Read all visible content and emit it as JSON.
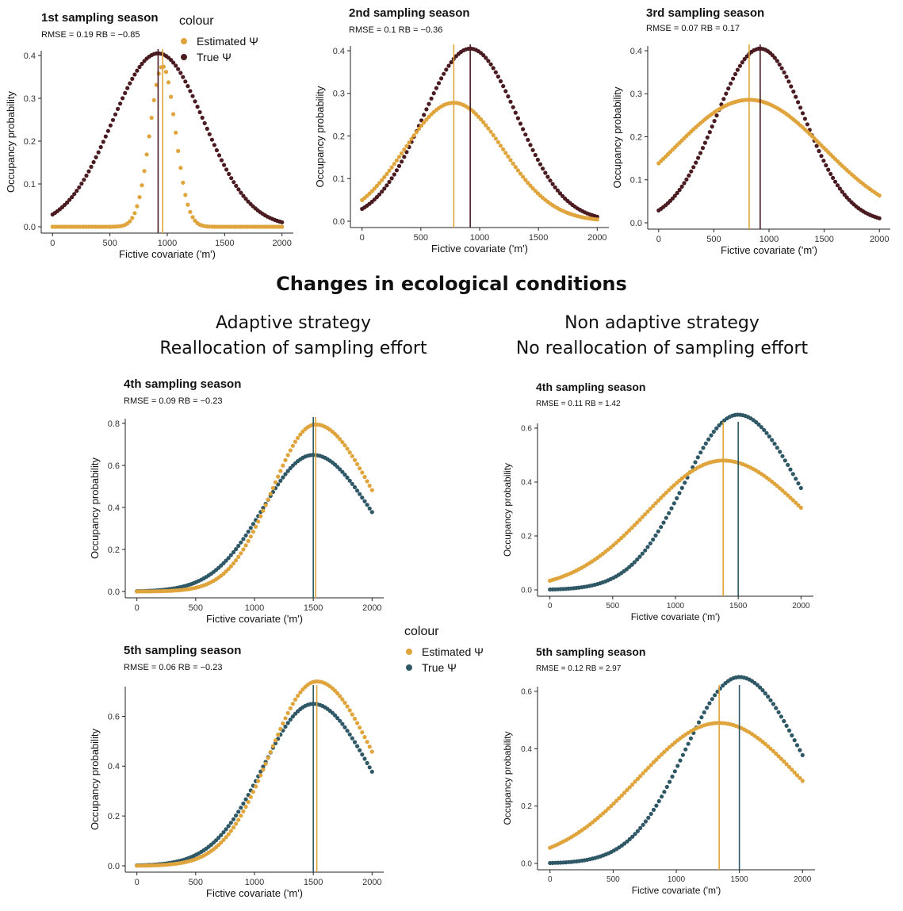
{
  "heading": "Changes in ecological conditions",
  "strategies": {
    "adaptive": {
      "line1": "Adaptive strategy",
      "line2": "Reallocation of sampling effort"
    },
    "nonadaptive": {
      "line1": "Non adaptive strategy",
      "line2": "No reallocation of sampling effort"
    }
  },
  "legends": [
    {
      "title": "colour",
      "items": [
        {
          "label": "Estimated Ψ",
          "color": "#e0a43c"
        },
        {
          "label": "True Ψ",
          "color": "#4a1c22"
        }
      ]
    },
    {
      "title": "colour",
      "items": [
        {
          "label": "Estimated Ψ",
          "color": "#e0a43c"
        },
        {
          "label": "True Ψ",
          "color": "#2f5866"
        }
      ]
    }
  ],
  "colors": {
    "estimated": "#e0a43c",
    "true_top": "#4a1c22",
    "true_bottom": "#2f5866"
  },
  "chart_data": [
    {
      "type": "scatter",
      "title": "1st sampling season",
      "subtitle": "RMSE = 0.19 RB = −0.85",
      "xlabel": "Fictive covariate ('m')",
      "ylabel": "Occupancy probability",
      "xlim": [
        0,
        2000
      ],
      "ylim": [
        0,
        0.4
      ],
      "xticks": [
        0,
        500,
        1000,
        1500,
        2000
      ],
      "yticks": [
        0.0,
        0.1,
        0.2,
        0.3,
        0.4
      ],
      "ytick_labels": [
        "0.0",
        "0.1",
        "0.2",
        "0.3",
        "0.4"
      ],
      "series": [
        {
          "name": "Estimated Ψ",
          "color": "#e0a43c",
          "peak_x": 960,
          "peak_y": 0.375,
          "sd": 110
        },
        {
          "name": "True Ψ",
          "color": "#4a1c22",
          "peak_x": 920,
          "peak_y": 0.405,
          "sd": 400
        }
      ],
      "vlines": [
        {
          "x": 960,
          "color": "#e0a43c"
        },
        {
          "x": 920,
          "color": "#4a1c22"
        }
      ]
    },
    {
      "type": "scatter",
      "title": "2nd sampling season",
      "subtitle": "RMSE = 0.1 RB = −0.36",
      "xlabel": "Fictive covariate ('m')",
      "ylabel": "Occupancy probability",
      "xlim": [
        0,
        2000
      ],
      "ylim": [
        0,
        0.4
      ],
      "xticks": [
        0,
        500,
        1000,
        1500,
        2000
      ],
      "yticks": [
        0.0,
        0.1,
        0.2,
        0.3,
        0.4
      ],
      "ytick_labels": [
        "0.0",
        "0.1",
        "0.2",
        "0.3",
        "0.4"
      ],
      "series": [
        {
          "name": "Estimated Ψ",
          "color": "#e0a43c",
          "peak_x": 780,
          "peak_y": 0.278,
          "sd": 420
        },
        {
          "name": "True Ψ",
          "color": "#4a1c22",
          "peak_x": 920,
          "peak_y": 0.405,
          "sd": 400
        }
      ],
      "vlines": [
        {
          "x": 780,
          "color": "#e0a43c"
        },
        {
          "x": 920,
          "color": "#4a1c22"
        }
      ]
    },
    {
      "type": "scatter",
      "title": "3rd sampling season",
      "subtitle": "RMSE = 0.07 RB = 0.17",
      "xlabel": "Fictive covariate ('m')",
      "ylabel": "Occupancy probability",
      "xlim": [
        0,
        2000
      ],
      "ylim": [
        0,
        0.4
      ],
      "xticks": [
        0,
        500,
        1000,
        1500,
        2000
      ],
      "yticks": [
        0.0,
        0.1,
        0.2,
        0.3,
        0.4
      ],
      "ytick_labels": [
        "0.0",
        "0.1",
        "0.2",
        "0.3",
        "0.4"
      ],
      "series": [
        {
          "name": "Estimated Ψ",
          "color": "#e0a43c",
          "peak_x": 820,
          "peak_y": 0.286,
          "sd": 680
        },
        {
          "name": "True Ψ",
          "color": "#4a1c22",
          "peak_x": 920,
          "peak_y": 0.405,
          "sd": 400
        }
      ],
      "vlines": [
        {
          "x": 820,
          "color": "#e0a43c"
        },
        {
          "x": 920,
          "color": "#4a1c22"
        }
      ]
    },
    {
      "type": "scatter",
      "title": "4th sampling season",
      "subtitle": "RMSE = 0.09 RB = −0.23",
      "xlabel": "Fictive covariate ('m')",
      "ylabel": "Occupancy probability",
      "xlim": [
        0,
        2000
      ],
      "ylim": [
        0,
        0.8
      ],
      "xticks": [
        0,
        500,
        1000,
        1500,
        2000
      ],
      "yticks": [
        0.0,
        0.2,
        0.4,
        0.6,
        0.8
      ],
      "ytick_labels": [
        "0.0",
        "0.2",
        "0.4",
        "0.6",
        "0.8"
      ],
      "series": [
        {
          "name": "Estimated Ψ",
          "color": "#e0a43c",
          "peak_x": 1520,
          "peak_y": 0.795,
          "sd_left": 370,
          "sd_right": 480
        },
        {
          "name": "True Ψ",
          "color": "#2f5866",
          "peak_x": 1500,
          "peak_y": 0.65,
          "sd_left": 430,
          "sd_right": 480
        }
      ],
      "vlines": [
        {
          "x": 1520,
          "color": "#e0a43c"
        },
        {
          "x": 1500,
          "color": "#2f5866"
        }
      ]
    },
    {
      "type": "scatter",
      "title": "4th sampling season",
      "subtitle": "RMSE = 0.11 RB = 1.42",
      "xlabel": "Fictive covariate ('m')",
      "ylabel": "Occupancy probability",
      "xlim": [
        0,
        2000
      ],
      "ylim": [
        0,
        0.6
      ],
      "xticks": [
        0,
        500,
        1000,
        1500,
        2000
      ],
      "yticks": [
        0.0,
        0.2,
        0.4,
        0.6
      ],
      "ytick_labels": [
        "0.0",
        "0.2",
        "0.4",
        "0.6"
      ],
      "series": [
        {
          "name": "Estimated Ψ",
          "color": "#e0a43c",
          "peak_x": 1380,
          "peak_y": 0.48,
          "sd_left": 600,
          "sd_right": 650
        },
        {
          "name": "True Ψ",
          "color": "#2f5866",
          "peak_x": 1500,
          "peak_y": 0.65,
          "sd_left": 430,
          "sd_right": 480
        }
      ],
      "vlines": [
        {
          "x": 1380,
          "color": "#e0a43c"
        },
        {
          "x": 1500,
          "color": "#2f5866"
        }
      ]
    },
    {
      "type": "scatter",
      "title": "5th sampling season",
      "subtitle": "RMSE = 0.06 RB = −0.23",
      "xlabel": "Fictive covariate ('m')",
      "ylabel": "Occupancy probability",
      "xlim": [
        0,
        2000
      ],
      "ylim": [
        0,
        0.7
      ],
      "xticks": [
        0,
        500,
        1000,
        1500,
        2000
      ],
      "yticks": [
        0.0,
        0.2,
        0.4,
        0.6
      ],
      "ytick_labels": [
        "0.0",
        "0.2",
        "0.4",
        "0.6"
      ],
      "series": [
        {
          "name": "Estimated Ψ",
          "color": "#e0a43c",
          "peak_x": 1530,
          "peak_y": 0.74,
          "sd_left": 400,
          "sd_right": 480
        },
        {
          "name": "True Ψ",
          "color": "#2f5866",
          "peak_x": 1500,
          "peak_y": 0.65,
          "sd_left": 430,
          "sd_right": 480
        }
      ],
      "vlines": [
        {
          "x": 1530,
          "color": "#e0a43c"
        },
        {
          "x": 1500,
          "color": "#2f5866"
        }
      ]
    },
    {
      "type": "scatter",
      "title": "5th sampling season",
      "subtitle": "RMSE = 0.12 RB = 2.97",
      "xlabel": "Fictive covariate ('m')",
      "ylabel": "Occupancy probability",
      "xlim": [
        0,
        2000
      ],
      "ylim": [
        0,
        0.6
      ],
      "xticks": [
        0,
        500,
        1000,
        1500,
        2000
      ],
      "yticks": [
        0.0,
        0.2,
        0.4,
        0.6
      ],
      "ytick_labels": [
        "0.0",
        "0.2",
        "0.4",
        "0.6"
      ],
      "series": [
        {
          "name": "Estimated Ψ",
          "color": "#e0a43c",
          "peak_x": 1340,
          "peak_y": 0.49,
          "sd_left": 640,
          "sd_right": 640
        },
        {
          "name": "True Ψ",
          "color": "#2f5866",
          "peak_x": 1500,
          "peak_y": 0.65,
          "sd_left": 430,
          "sd_right": 480
        }
      ],
      "vlines": [
        {
          "x": 1340,
          "color": "#e0a43c"
        },
        {
          "x": 1500,
          "color": "#2f5866"
        }
      ]
    }
  ]
}
